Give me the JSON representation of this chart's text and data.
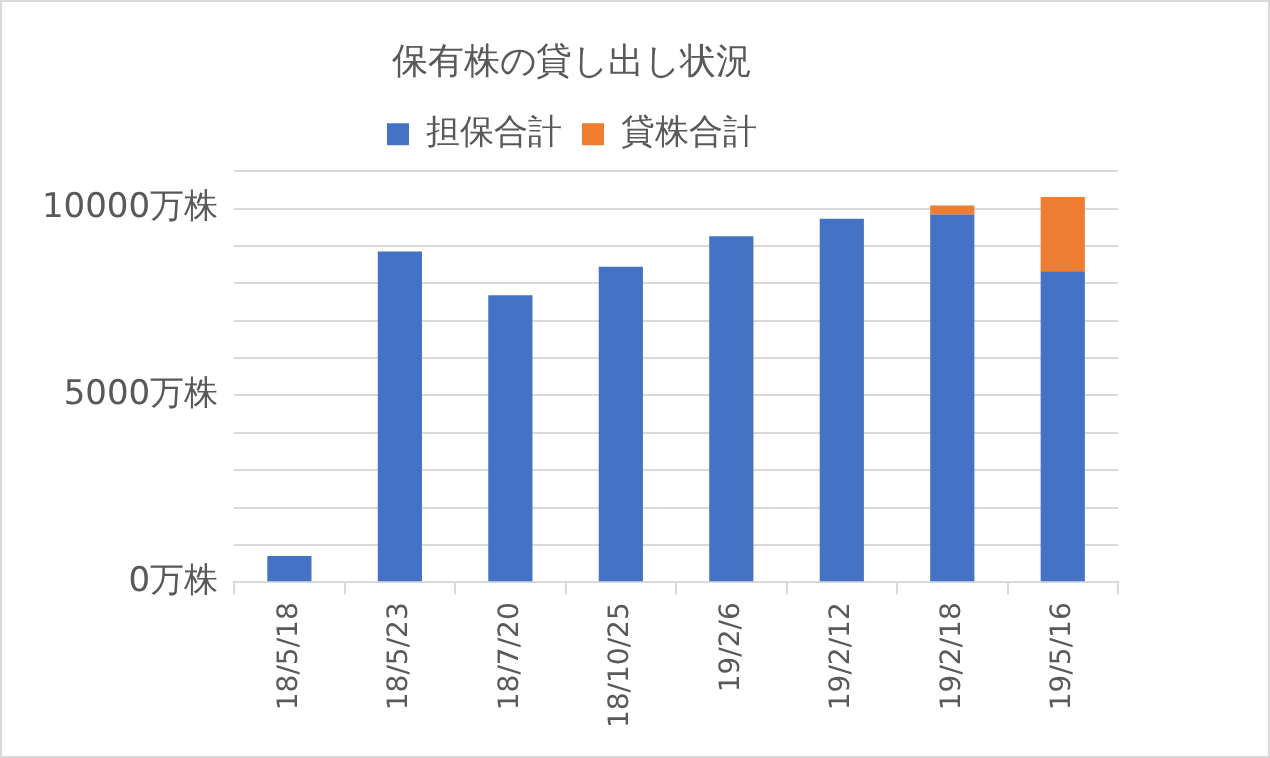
{
  "chart_data": {
    "type": "bar",
    "title": "保有株の貸し出し状況",
    "stacked": true,
    "categories": [
      "18/5/18",
      "18/5/23",
      "18/7/20",
      "18/10/25",
      "19/2/6",
      "19/2/12",
      "19/2/18",
      "19/5/16"
    ],
    "series": [
      {
        "name": "担保合計",
        "color": "#4472c4",
        "values": [
          700,
          8850,
          7680,
          8440,
          9260,
          9730,
          9840,
          8320
        ]
      },
      {
        "name": "貸株合計",
        "color": "#ed7d31",
        "values": [
          0,
          0,
          0,
          0,
          0,
          0,
          240,
          1990
        ]
      }
    ],
    "ylim": [
      0,
      11000
    ],
    "yticks": [
      {
        "value": 0,
        "label": "0万株"
      },
      {
        "value": 1000,
        "label": null
      },
      {
        "value": 2000,
        "label": null
      },
      {
        "value": 3000,
        "label": null
      },
      {
        "value": 4000,
        "label": null
      },
      {
        "value": 5000,
        "label": "5000万株"
      },
      {
        "value": 6000,
        "label": null
      },
      {
        "value": 7000,
        "label": null
      },
      {
        "value": 8000,
        "label": null
      },
      {
        "value": 9000,
        "label": null
      },
      {
        "value": 10000,
        "label": "10000万株"
      },
      {
        "value": 11000,
        "label": null
      }
    ],
    "grid": "y",
    "legend": "top"
  }
}
